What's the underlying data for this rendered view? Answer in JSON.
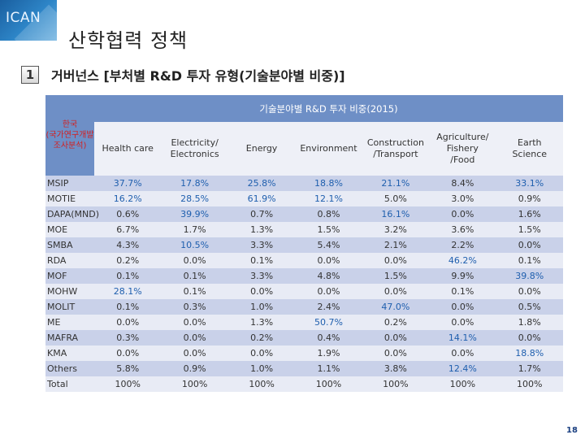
{
  "logo": "ICAN",
  "title": "산학협력 정책",
  "section_number": "1",
  "subtitle": "거버넌스 [부처별 R&D 투자 유형(기술분야별 비중)]",
  "table": {
    "corner_label": "한국\n(국가연구개발\n조사분석)",
    "group_header": "기술분야별 R&D 투자 비중(2015)",
    "columns": [
      "Health care",
      "Electricity/\nElectronics",
      "Energy",
      "Environment",
      "Construction\n/Transport",
      "Agriculture/\nFishery\n/Food",
      "Earth\nScience"
    ],
    "rows": [
      {
        "agency": "MSIP",
        "values": [
          "37.7%",
          "17.8%",
          "25.8%",
          "18.8%",
          "21.1%",
          "8.4%",
          "33.1%"
        ],
        "highlight": [
          true,
          true,
          true,
          true,
          true,
          false,
          true
        ]
      },
      {
        "agency": "MOTIE",
        "values": [
          "16.2%",
          "28.5%",
          "61.9%",
          "12.1%",
          "5.0%",
          "3.0%",
          "0.9%"
        ],
        "highlight": [
          true,
          true,
          true,
          true,
          false,
          false,
          false
        ]
      },
      {
        "agency": "DAPA(MND)",
        "values": [
          "0.6%",
          "39.9%",
          "0.7%",
          "0.8%",
          "16.1%",
          "0.0%",
          "1.6%"
        ],
        "highlight": [
          false,
          true,
          false,
          false,
          true,
          false,
          false
        ]
      },
      {
        "agency": "MOE",
        "values": [
          "6.7%",
          "1.7%",
          "1.3%",
          "1.5%",
          "3.2%",
          "3.6%",
          "1.5%"
        ],
        "highlight": [
          false,
          false,
          false,
          false,
          false,
          false,
          false
        ]
      },
      {
        "agency": "SMBA",
        "values": [
          "4.3%",
          "10.5%",
          "3.3%",
          "5.4%",
          "2.1%",
          "2.2%",
          "0.0%"
        ],
        "highlight": [
          false,
          true,
          false,
          false,
          false,
          false,
          false
        ]
      },
      {
        "agency": "RDA",
        "values": [
          "0.2%",
          "0.0%",
          "0.1%",
          "0.0%",
          "0.0%",
          "46.2%",
          "0.1%"
        ],
        "highlight": [
          false,
          false,
          false,
          false,
          false,
          true,
          false
        ]
      },
      {
        "agency": "MOF",
        "values": [
          "0.1%",
          "0.1%",
          "3.3%",
          "4.8%",
          "1.5%",
          "9.9%",
          "39.8%"
        ],
        "highlight": [
          false,
          false,
          false,
          false,
          false,
          false,
          true
        ]
      },
      {
        "agency": "MOHW",
        "values": [
          "28.1%",
          "0.1%",
          "0.0%",
          "0.0%",
          "0.0%",
          "0.1%",
          "0.0%"
        ],
        "highlight": [
          true,
          false,
          false,
          false,
          false,
          false,
          false
        ]
      },
      {
        "agency": "MOLIT",
        "values": [
          "0.1%",
          "0.3%",
          "1.0%",
          "2.4%",
          "47.0%",
          "0.0%",
          "0.5%"
        ],
        "highlight": [
          false,
          false,
          false,
          false,
          true,
          false,
          false
        ]
      },
      {
        "agency": "ME",
        "values": [
          "0.0%",
          "0.0%",
          "1.3%",
          "50.7%",
          "0.2%",
          "0.0%",
          "1.8%"
        ],
        "highlight": [
          false,
          false,
          false,
          true,
          false,
          false,
          false
        ]
      },
      {
        "agency": "MAFRA",
        "values": [
          "0.3%",
          "0.0%",
          "0.2%",
          "0.4%",
          "0.0%",
          "14.1%",
          "0.0%"
        ],
        "highlight": [
          false,
          false,
          false,
          false,
          false,
          true,
          false
        ]
      },
      {
        "agency": "KMA",
        "values": [
          "0.0%",
          "0.0%",
          "0.0%",
          "1.9%",
          "0.0%",
          "0.0%",
          "18.8%"
        ],
        "highlight": [
          false,
          false,
          false,
          false,
          false,
          false,
          true
        ]
      },
      {
        "agency": "Others",
        "values": [
          "5.8%",
          "0.9%",
          "1.0%",
          "1.1%",
          "3.8%",
          "12.4%",
          "1.7%"
        ],
        "highlight": [
          false,
          false,
          false,
          false,
          false,
          true,
          false
        ]
      },
      {
        "agency": "Total",
        "values": [
          "100%",
          "100%",
          "100%",
          "100%",
          "100%",
          "100%",
          "100%"
        ],
        "highlight": [
          false,
          false,
          false,
          false,
          false,
          false,
          false
        ]
      }
    ]
  },
  "page_number": "18",
  "colors": {
    "header_bg": "#6e8fc6",
    "corner_text": "#d31f1f",
    "highlight_text": "#1f5fae",
    "row_dark": "#c9d1e9",
    "row_light": "#e8ebf5"
  }
}
